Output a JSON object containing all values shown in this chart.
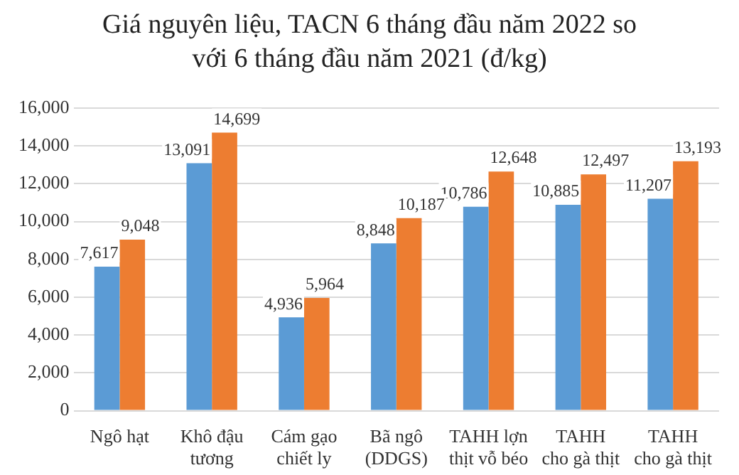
{
  "chart_data": {
    "type": "bar",
    "title": "Giá nguyên liệu, TACN 6 tháng đầu năm 2022 so với 6 tháng đầu năm 2021 (đ/kg)",
    "categories": [
      "Ngô hạt",
      "Khô đậu tương",
      "Cám gạo chiết ly",
      "Bã ngô (DDGS)",
      "TAHH lợn thịt vỗ béo",
      "TAHH cho gà thịt",
      "TAHH cho gà thịt"
    ],
    "series": [
      {
        "color": "#5b9bd5",
        "values": [
          7617,
          13091,
          4936,
          8848,
          10786,
          10885,
          11207
        ],
        "value_labels": [
          "7,617",
          "13,091",
          "4,936",
          "8,848",
          "10,786",
          "10,885",
          "11,207"
        ]
      },
      {
        "color": "#ed7d31",
        "values": [
          9048,
          14699,
          5964,
          10187,
          12648,
          12497,
          13193
        ],
        "value_labels": [
          "9,048",
          "14,699",
          "5,964",
          "10,187",
          "12,648",
          "12,497",
          "13,193"
        ]
      }
    ],
    "ylim": [
      0,
      16000
    ],
    "yticks": [
      0,
      {
        "value": 2000,
        "label": "2,000"
      },
      {
        "value": 4000,
        "label": "4,000"
      },
      {
        "value": 6000,
        "label": "6,000"
      },
      {
        "value": 8000,
        "label": "8,000"
      },
      {
        "value": 10000,
        "label": "10,000"
      },
      {
        "value": 12000,
        "label": "12,000"
      },
      {
        "value": 14000,
        "label": "14,000"
      },
      {
        "value": 16000,
        "label": "16,000"
      }
    ],
    "grid": "y",
    "legend": false
  }
}
